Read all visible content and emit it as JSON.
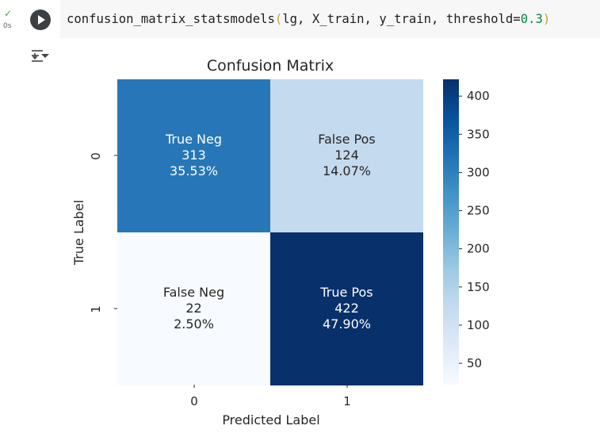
{
  "cell": {
    "status_icon": "check-icon",
    "exec_time": "0s",
    "run_icon": "play-icon",
    "code": {
      "func": "confusion_matrix_statsmodels",
      "open_paren": "(",
      "args": "lg, X_train, y_train, ",
      "param": "threshold=",
      "number": "0.3",
      "close_paren": ")"
    },
    "output_toggle_icon": "output-collapse-icon"
  },
  "chart_data": {
    "type": "heatmap",
    "title": "Confusion Matrix",
    "xlabel": "Predicted Label",
    "ylabel": "True Label",
    "x_ticks": [
      "0",
      "1"
    ],
    "y_ticks": [
      "0",
      "1"
    ],
    "cells": [
      [
        {
          "label": "True Neg",
          "count": "313",
          "pct": "35.53%",
          "value": 313
        },
        {
          "label": "False Pos",
          "count": "124",
          "pct": "14.07%",
          "value": 124
        }
      ],
      [
        {
          "label": "False Neg",
          "count": "22",
          "pct": "2.50%",
          "value": 22
        },
        {
          "label": "True Pos",
          "count": "422",
          "pct": "47.90%",
          "value": 422
        }
      ]
    ],
    "colorbar": {
      "min": 22,
      "max": 422,
      "ticks": [
        "50",
        "100",
        "150",
        "200",
        "250",
        "300",
        "350",
        "400"
      ],
      "colormap": "Blues"
    }
  }
}
